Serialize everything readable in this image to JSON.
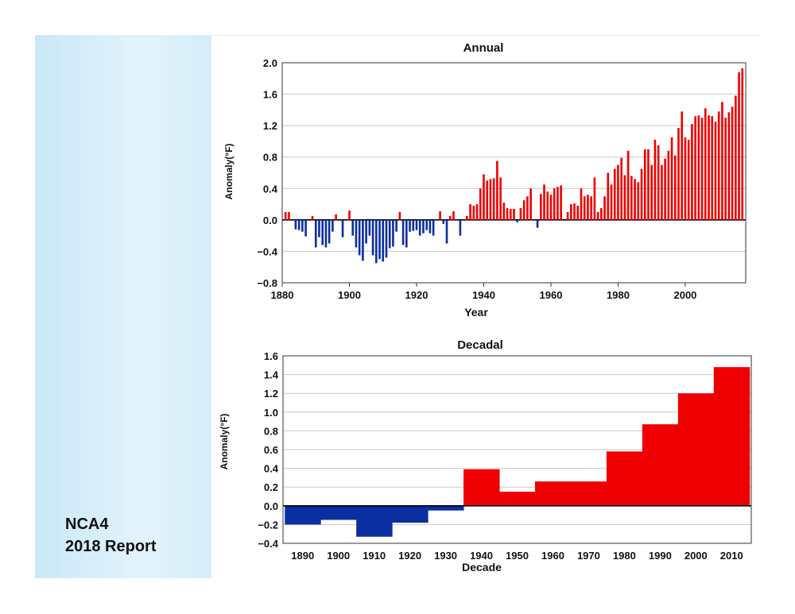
{
  "caption": {
    "line1": "NCA4",
    "line2": "2018 Report"
  },
  "colors": {
    "positive": "#ee0000",
    "negative": "#0b2fa0",
    "grid": "#c8c8c8",
    "panel": "#d6edf9"
  },
  "chart_data": [
    {
      "type": "bar",
      "title": "Annual",
      "xlabel": "Year",
      "ylabel": "Anomaly(°F)",
      "xlim": [
        1880,
        2018
      ],
      "ylim": [
        -0.8,
        2.0
      ],
      "xticks": [
        1880,
        1900,
        1920,
        1940,
        1960,
        1980,
        2000
      ],
      "yticks": [
        "2.0",
        "1.6",
        "1.2",
        "0.8",
        "0.4",
        "0.0",
        "−0.4",
        "−0.8"
      ],
      "grid": true,
      "x": [
        1881,
        1882,
        1883,
        1884,
        1885,
        1886,
        1887,
        1888,
        1889,
        1890,
        1891,
        1892,
        1893,
        1894,
        1895,
        1896,
        1897,
        1898,
        1899,
        1900,
        1901,
        1902,
        1903,
        1904,
        1905,
        1906,
        1907,
        1908,
        1909,
        1910,
        1911,
        1912,
        1913,
        1914,
        1915,
        1916,
        1917,
        1918,
        1919,
        1920,
        1921,
        1922,
        1923,
        1924,
        1925,
        1926,
        1927,
        1928,
        1929,
        1930,
        1931,
        1932,
        1933,
        1934,
        1935,
        1936,
        1937,
        1938,
        1939,
        1940,
        1941,
        1942,
        1943,
        1944,
        1945,
        1946,
        1947,
        1948,
        1949,
        1950,
        1951,
        1952,
        1953,
        1954,
        1955,
        1956,
        1957,
        1958,
        1959,
        1960,
        1961,
        1962,
        1963,
        1964,
        1965,
        1966,
        1967,
        1968,
        1969,
        1970,
        1971,
        1972,
        1973,
        1974,
        1975,
        1976,
        1977,
        1978,
        1979,
        1980,
        1981,
        1982,
        1983,
        1984,
        1985,
        1986,
        1987,
        1988,
        1989,
        1990,
        1991,
        1992,
        1993,
        1994,
        1995,
        1996,
        1997,
        1998,
        1999,
        2000,
        2001,
        2002,
        2003,
        2004,
        2005,
        2006,
        2007,
        2008,
        2009,
        2010,
        2011,
        2012,
        2013,
        2014,
        2015,
        2016,
        2017
      ],
      "values": [
        0.1,
        0.1,
        0.0,
        -0.12,
        -0.13,
        -0.15,
        -0.21,
        0.0,
        0.05,
        -0.35,
        -0.22,
        -0.32,
        -0.35,
        -0.3,
        -0.15,
        0.07,
        0.0,
        -0.22,
        0.0,
        0.12,
        -0.2,
        -0.35,
        -0.45,
        -0.52,
        -0.3,
        -0.2,
        -0.45,
        -0.55,
        -0.5,
        -0.53,
        -0.48,
        -0.36,
        -0.34,
        -0.15,
        0.1,
        -0.32,
        -0.35,
        -0.15,
        -0.14,
        -0.13,
        -0.2,
        -0.17,
        -0.13,
        -0.17,
        -0.2,
        0.0,
        0.11,
        -0.05,
        -0.3,
        0.05,
        0.11,
        0.0,
        -0.2,
        0.0,
        0.05,
        0.2,
        0.18,
        0.2,
        0.4,
        0.58,
        0.5,
        0.52,
        0.53,
        0.75,
        0.54,
        0.22,
        0.15,
        0.14,
        0.14,
        -0.03,
        0.15,
        0.25,
        0.3,
        0.4,
        0.0,
        -0.1,
        0.33,
        0.45,
        0.36,
        0.32,
        0.4,
        0.42,
        0.44,
        0.0,
        0.1,
        0.2,
        0.21,
        0.18,
        0.4,
        0.3,
        0.32,
        0.3,
        0.54,
        0.1,
        0.15,
        0.3,
        0.6,
        0.45,
        0.65,
        0.7,
        0.79,
        0.57,
        0.88,
        0.56,
        0.52,
        0.48,
        0.65,
        0.9,
        0.9,
        0.7,
        1.02,
        0.95,
        0.7,
        0.78,
        0.88,
        1.05,
        0.82,
        1.17,
        1.38,
        1.05,
        1.02,
        1.22,
        1.32,
        1.33,
        1.3,
        1.42,
        1.33,
        1.32,
        1.25,
        1.38,
        1.5,
        1.3,
        1.37,
        1.44,
        1.58,
        1.88,
        1.93
      ]
    },
    {
      "type": "bar",
      "title": "Decadal",
      "xlabel": "Decade",
      "ylabel": "Anomaly(°F)",
      "ylim": [
        -0.4,
        1.6
      ],
      "yticks": [
        "1.6",
        "1.4",
        "1.2",
        "1.0",
        "0.8",
        "0.6",
        "0.4",
        "0.2",
        "0.0",
        "−0.2",
        "−0.4"
      ],
      "grid": true,
      "categories": [
        "1890",
        "1900",
        "1910",
        "1920",
        "1930",
        "1940",
        "1950",
        "1960",
        "1970",
        "1980",
        "1990",
        "2000",
        "2010"
      ],
      "values": [
        -0.2,
        -0.15,
        -0.33,
        -0.18,
        -0.05,
        0.39,
        0.15,
        0.26,
        0.26,
        0.58,
        0.87,
        1.2,
        1.48
      ]
    }
  ]
}
